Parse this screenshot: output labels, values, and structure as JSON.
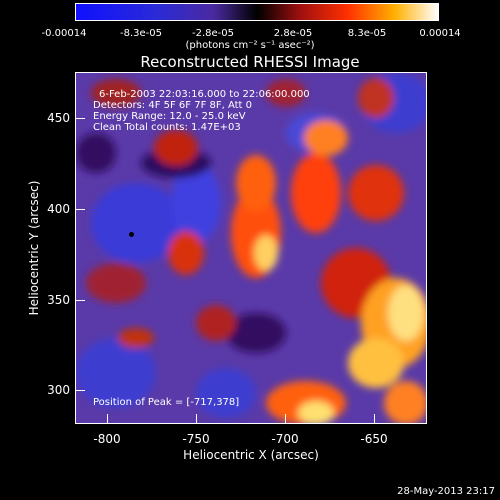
{
  "colorbar": {
    "ticks": [
      "-0.00014",
      "-8.3e-05",
      "-2.8e-05",
      "2.8e-05",
      "8.3e-05",
      "0.00014"
    ],
    "unit": "(photons cm⁻² s⁻¹ asec⁻²)"
  },
  "header": {
    "title": "Reconstructed RHESSI Image"
  },
  "info": {
    "time": "6-Feb-2003 22:03:16.000 to 22:06:00.000",
    "detectors": "Detectors: 4F 5F 6F 7F 8F, Att 0",
    "energy": "Energy Range: 12.0 - 25.0 keV",
    "clean": "Clean      Total counts: 1.47E+03",
    "peak": "Position of Peak = [-717,378]"
  },
  "footer": {
    "timestamp": "28-May-2013 23:17"
  },
  "chart_data": {
    "type": "heatmap",
    "title": "Reconstructed RHESSI Image",
    "xlabel": "Heliocentric X (arcsec)",
    "ylabel": "Heliocentric Y (arcsec)",
    "xlim": [
      -815,
      -625
    ],
    "ylim": [
      280,
      475
    ],
    "x_ticks": [
      -800,
      -750,
      -700,
      -650
    ],
    "y_ticks": [
      300,
      350,
      400,
      450
    ],
    "x_tick_labels": [
      "-800",
      "-750",
      "-700",
      "-650"
    ],
    "y_tick_labels": [
      "300",
      "350",
      "400",
      "450"
    ],
    "colorbar_range": [
      -0.00014,
      0.00014
    ],
    "peak_position": [
      -717,
      378
    ]
  }
}
